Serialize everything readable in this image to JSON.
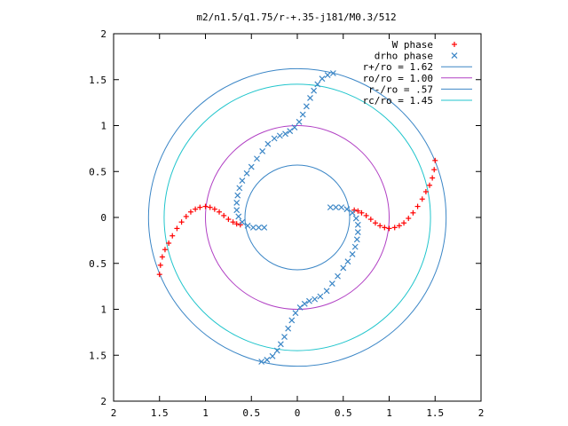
{
  "chart_data": {
    "type": "scatter",
    "title": "m2/n1.5/q1.75/r-+.35-j181/M0.3/512",
    "xlim": [
      -2,
      2
    ],
    "ylim": [
      -2,
      2
    ],
    "x_ticks": [
      "2",
      "1.5",
      "1",
      "0.5",
      "0",
      "0.5",
      "1",
      "1.5",
      "2"
    ],
    "y_ticks": [
      "2",
      "1.5",
      "1",
      "0.5",
      "0",
      "0.5",
      "1",
      "1.5",
      "2"
    ],
    "x_tick_values": [
      -2,
      -1.5,
      -1,
      -0.5,
      0,
      0.5,
      1,
      1.5,
      2
    ],
    "y_tick_values": [
      2,
      1.5,
      1,
      0.5,
      0,
      -0.5,
      -1,
      -1.5,
      -2
    ],
    "grid": false,
    "legend_position": "top-right",
    "series": [
      {
        "name": "W phase",
        "marker": "plus",
        "color": "#ff0000",
        "points": [
          [
            -1.5,
            -0.62
          ],
          [
            -1.49,
            -0.52
          ],
          [
            -1.47,
            -0.43
          ],
          [
            -1.44,
            -0.35
          ],
          [
            -1.4,
            -0.28
          ],
          [
            -1.36,
            -0.2
          ],
          [
            -1.31,
            -0.12
          ],
          [
            -1.26,
            -0.05
          ],
          [
            -1.21,
            0.01
          ],
          [
            -1.16,
            0.06
          ],
          [
            -1.11,
            0.09
          ],
          [
            -1.06,
            0.11
          ],
          [
            -1.0,
            0.12
          ],
          [
            -0.95,
            0.11
          ],
          [
            -0.9,
            0.09
          ],
          [
            -0.85,
            0.06
          ],
          [
            -0.8,
            0.02
          ],
          [
            -0.75,
            -0.02
          ],
          [
            -0.7,
            -0.05
          ],
          [
            -0.66,
            -0.07
          ],
          [
            -0.62,
            -0.08
          ],
          [
            1.5,
            0.62
          ],
          [
            1.49,
            0.52
          ],
          [
            1.47,
            0.43
          ],
          [
            1.44,
            0.35
          ],
          [
            1.4,
            0.28
          ],
          [
            1.36,
            0.2
          ],
          [
            1.31,
            0.12
          ],
          [
            1.26,
            0.05
          ],
          [
            1.21,
            -0.01
          ],
          [
            1.16,
            -0.06
          ],
          [
            1.11,
            -0.09
          ],
          [
            1.06,
            -0.11
          ],
          [
            1.0,
            -0.12
          ],
          [
            0.95,
            -0.11
          ],
          [
            0.9,
            -0.09
          ],
          [
            0.85,
            -0.06
          ],
          [
            0.8,
            -0.02
          ],
          [
            0.75,
            0.02
          ],
          [
            0.7,
            0.05
          ],
          [
            0.66,
            0.07
          ],
          [
            0.62,
            0.08
          ]
        ]
      },
      {
        "name": "drho phase",
        "marker": "cross",
        "color": "#3b86c6",
        "points": [
          [
            0.39,
            1.57
          ],
          [
            0.33,
            1.55
          ],
          [
            0.27,
            1.51
          ],
          [
            0.22,
            1.45
          ],
          [
            0.18,
            1.38
          ],
          [
            0.14,
            1.3
          ],
          [
            0.1,
            1.21
          ],
          [
            0.06,
            1.12
          ],
          [
            0.02,
            1.04
          ],
          [
            -0.03,
            0.98
          ],
          [
            -0.08,
            0.94
          ],
          [
            -0.13,
            0.91
          ],
          [
            -0.19,
            0.89
          ],
          [
            -0.25,
            0.86
          ],
          [
            -0.32,
            0.8
          ],
          [
            -0.38,
            0.72
          ],
          [
            -0.44,
            0.64
          ],
          [
            -0.5,
            0.55
          ],
          [
            -0.55,
            0.48
          ],
          [
            -0.6,
            0.4
          ],
          [
            -0.63,
            0.32
          ],
          [
            -0.65,
            0.24
          ],
          [
            -0.66,
            0.16
          ],
          [
            -0.66,
            0.08
          ],
          [
            -0.64,
            0.01
          ],
          [
            -0.6,
            -0.05
          ],
          [
            -0.54,
            -0.09
          ],
          [
            -0.48,
            -0.11
          ],
          [
            -0.42,
            -0.11
          ],
          [
            -0.36,
            -0.11
          ],
          [
            -0.39,
            -1.57
          ],
          [
            -0.33,
            -1.55
          ],
          [
            -0.27,
            -1.51
          ],
          [
            -0.22,
            -1.45
          ],
          [
            -0.18,
            -1.38
          ],
          [
            -0.14,
            -1.3
          ],
          [
            -0.1,
            -1.21
          ],
          [
            -0.06,
            -1.12
          ],
          [
            -0.02,
            -1.04
          ],
          [
            0.03,
            -0.98
          ],
          [
            0.08,
            -0.94
          ],
          [
            0.13,
            -0.91
          ],
          [
            0.19,
            -0.89
          ],
          [
            0.25,
            -0.86
          ],
          [
            0.32,
            -0.8
          ],
          [
            0.38,
            -0.72
          ],
          [
            0.44,
            -0.64
          ],
          [
            0.5,
            -0.55
          ],
          [
            0.55,
            -0.48
          ],
          [
            0.6,
            -0.4
          ],
          [
            0.63,
            -0.32
          ],
          [
            0.65,
            -0.24
          ],
          [
            0.66,
            -0.16
          ],
          [
            0.66,
            -0.08
          ],
          [
            0.64,
            -0.01
          ],
          [
            0.6,
            0.05
          ],
          [
            0.54,
            0.09
          ],
          [
            0.48,
            0.11
          ],
          [
            0.42,
            0.11
          ],
          [
            0.36,
            0.11
          ]
        ]
      },
      {
        "name": "r+/ro = 1.62",
        "type": "circle",
        "radius": 1.62,
        "color": "#3b86c6"
      },
      {
        "name": "ro/ro = 1.00",
        "type": "circle",
        "radius": 1.0,
        "color": "#b140c4"
      },
      {
        "name": "r-/ro = .57",
        "type": "circle",
        "radius": 0.57,
        "color": "#3b86c6"
      },
      {
        "name": "rc/ro = 1.45",
        "type": "circle",
        "radius": 1.45,
        "color": "#21c5cc"
      }
    ]
  }
}
